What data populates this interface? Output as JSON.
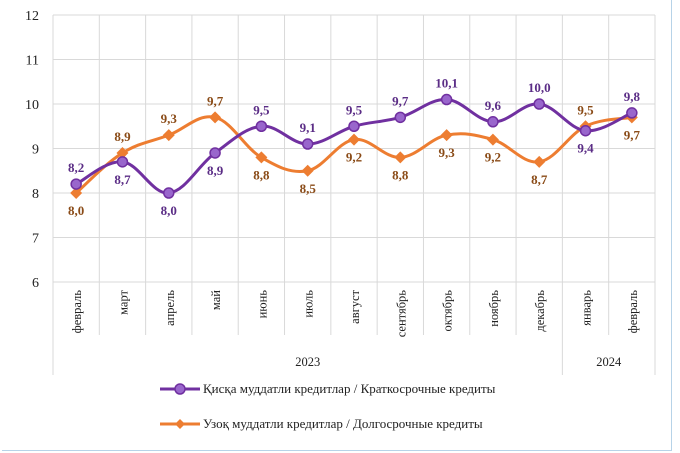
{
  "chart_data": {
    "type": "line",
    "categories": [
      "февраль",
      "март",
      "апрель",
      "май",
      "июнь",
      "июль",
      "август",
      "сентябрь",
      "октябрь",
      "ноябрь",
      "декабрь",
      "январь",
      "февраль"
    ],
    "year_groups": [
      {
        "label": "2023",
        "count": 11
      },
      {
        "label": "2024",
        "count": 2
      }
    ],
    "ylim": [
      6,
      12
    ],
    "yticks": [
      6,
      7,
      8,
      9,
      10,
      11,
      12
    ],
    "grid": true,
    "legend_position": "bottom",
    "series": [
      {
        "name": "Қисқа муддатли кредитлар  / Краткосрочные кредиты",
        "color": "#7030a0",
        "marker": "circle",
        "values": [
          8.2,
          8.7,
          8.0,
          8.9,
          9.5,
          9.1,
          9.5,
          9.7,
          10.1,
          9.6,
          10.0,
          9.4,
          9.8
        ],
        "labels": [
          "8,2",
          "8,7",
          "8,0",
          "8,9",
          "9,5",
          "9,1",
          "9,5",
          "9,7",
          "10,1",
          "9,6",
          "10,0",
          "9,4",
          "9,8"
        ]
      },
      {
        "name": "Узоқ муддатли кредитлар  / Долгосрочные кредиты",
        "color": "#ed7d31",
        "marker": "diamond",
        "values": [
          8.0,
          8.9,
          9.3,
          9.7,
          8.8,
          8.5,
          9.2,
          8.8,
          9.3,
          9.2,
          8.7,
          9.5,
          9.7
        ],
        "labels": [
          "8,0",
          "8,9",
          "9,3",
          "9,7",
          "8,8",
          "8,5",
          "9,2",
          "8,8",
          "9,3",
          "9,2",
          "8,7",
          "9,5",
          "9,7"
        ]
      }
    ]
  }
}
